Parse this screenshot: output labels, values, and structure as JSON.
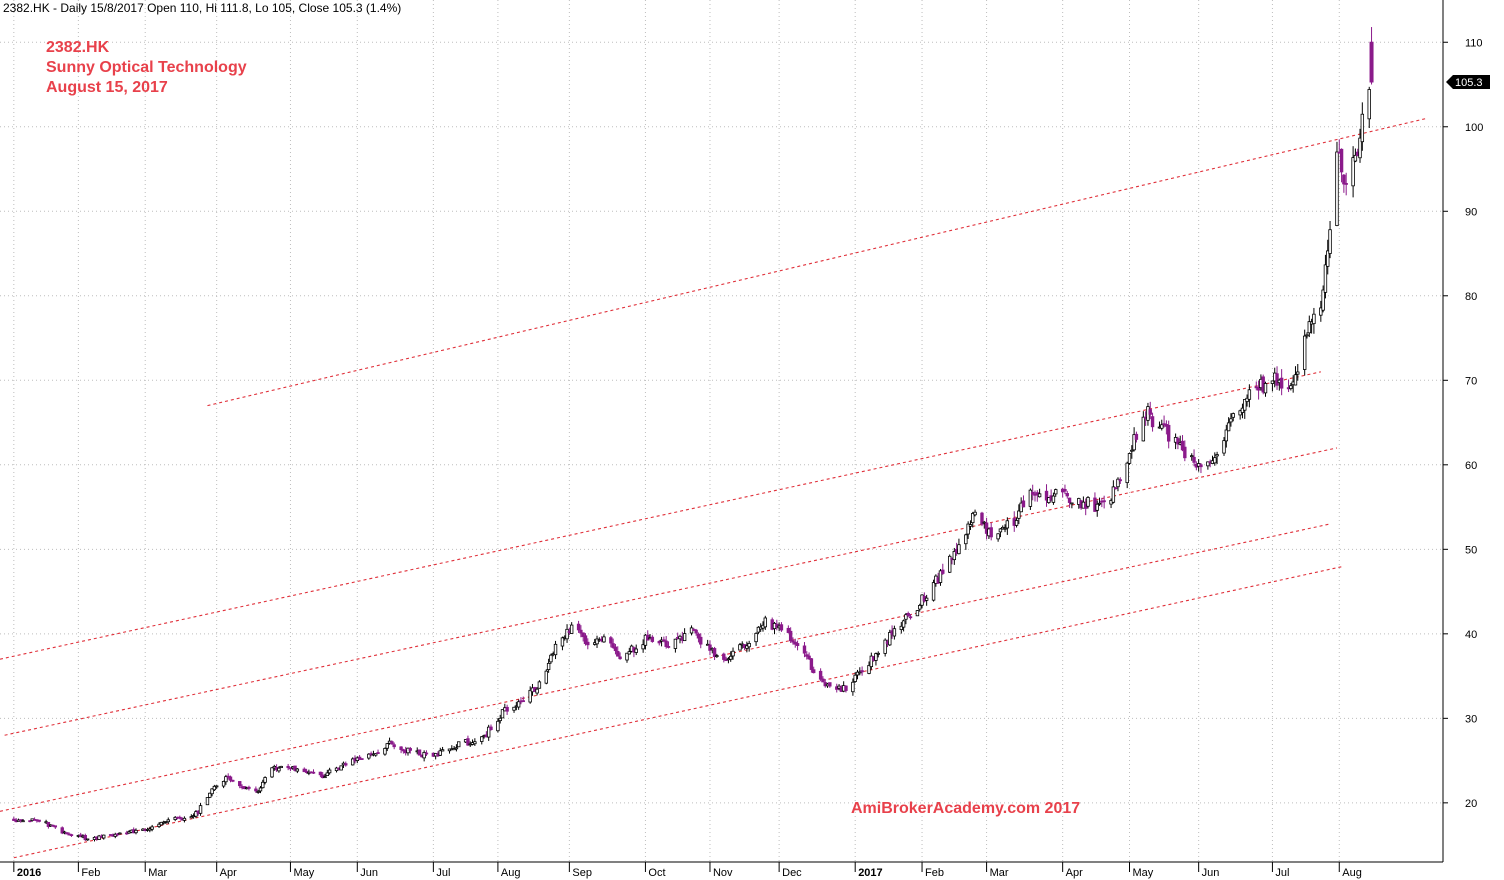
{
  "header": {
    "info": "2382.HK - Daily 15/8/2017 Open 110, Hi 111.8, Lo 105, Close 105.3 (1.4%)"
  },
  "annotation": {
    "lines": [
      "2382.HK",
      "Sunny Optical Technology",
      "August 15, 2017"
    ],
    "color": "#e8414b"
  },
  "watermark": {
    "text": "AmiBrokerAcademy.com  2017",
    "color": "#e8414b"
  },
  "last_price_label": "105.3",
  "colors": {
    "up": "#000000",
    "down": "#8b1a8b",
    "channel": "#e0303a"
  },
  "chart_data": {
    "type": "candlestick",
    "title": "",
    "xlabel": "",
    "ylabel": "",
    "ylim": [
      13,
      115
    ],
    "xlim": [
      "2015-12-29",
      "2017-09-15"
    ],
    "yticks": [
      20,
      30,
      40,
      50,
      60,
      70,
      80,
      90,
      100,
      110
    ],
    "xticks": [
      {
        "date": "2016-01-04",
        "label": "2016",
        "year": true
      },
      {
        "date": "2016-02-01",
        "label": "Feb"
      },
      {
        "date": "2016-03-01",
        "label": "Mar"
      },
      {
        "date": "2016-04-01",
        "label": "Apr"
      },
      {
        "date": "2016-05-03",
        "label": "May"
      },
      {
        "date": "2016-06-01",
        "label": "Jun"
      },
      {
        "date": "2016-07-04",
        "label": "Jul"
      },
      {
        "date": "2016-08-01",
        "label": "Aug"
      },
      {
        "date": "2016-09-01",
        "label": "Sep"
      },
      {
        "date": "2016-10-04",
        "label": "Oct"
      },
      {
        "date": "2016-11-01",
        "label": "Nov"
      },
      {
        "date": "2016-12-01",
        "label": "Dec"
      },
      {
        "date": "2017-01-03",
        "label": "2017",
        "year": true
      },
      {
        "date": "2017-02-01",
        "label": "Feb"
      },
      {
        "date": "2017-03-01",
        "label": "Mar"
      },
      {
        "date": "2017-04-03",
        "label": "Apr"
      },
      {
        "date": "2017-05-02",
        "label": "May"
      },
      {
        "date": "2017-06-01",
        "label": "Jun"
      },
      {
        "date": "2017-07-03",
        "label": "Jul"
      },
      {
        "date": "2017-08-01",
        "label": "Aug"
      }
    ],
    "trend_lines": [
      {
        "x": [
          "2016-03-28",
          "2017-09-08"
        ],
        "y": [
          67,
          101
        ]
      },
      {
        "x": [
          "2015-12-29",
          "2017-07-24"
        ],
        "y": [
          37,
          71
        ]
      },
      {
        "x": [
          "2015-12-31",
          "2017-07-31"
        ],
        "y": [
          28,
          62
        ]
      },
      {
        "x": [
          "2015-12-29",
          "2017-07-28"
        ],
        "y": [
          19,
          53
        ]
      },
      {
        "x": [
          "2016-01-04",
          "2017-08-03"
        ],
        "y": [
          13.5,
          48
        ]
      }
    ],
    "close_path": [
      [
        "2016-01-04",
        18
      ],
      [
        "2016-01-15",
        18
      ],
      [
        "2016-01-25",
        16.5
      ],
      [
        "2016-02-05",
        15.8
      ],
      [
        "2016-02-19",
        16.3
      ],
      [
        "2016-03-01",
        16.8
      ],
      [
        "2016-03-10",
        18
      ],
      [
        "2016-03-18",
        18.2
      ],
      [
        "2016-03-24",
        19
      ],
      [
        "2016-03-30",
        21.5
      ],
      [
        "2016-04-05",
        23
      ],
      [
        "2016-04-12",
        22
      ],
      [
        "2016-04-19",
        21.5
      ],
      [
        "2016-04-25",
        24
      ],
      [
        "2016-05-05",
        24
      ],
      [
        "2016-05-16",
        23
      ],
      [
        "2016-05-26",
        24.5
      ],
      [
        "2016-06-06",
        25.5
      ],
      [
        "2016-06-15",
        27
      ],
      [
        "2016-06-24",
        26
      ],
      [
        "2016-07-04",
        25.5
      ],
      [
        "2016-07-15",
        27
      ],
      [
        "2016-07-25",
        27.5
      ],
      [
        "2016-08-04",
        31
      ],
      [
        "2016-08-12",
        32
      ],
      [
        "2016-08-19",
        34
      ],
      [
        "2016-08-25",
        38
      ],
      [
        "2016-09-02",
        41
      ],
      [
        "2016-09-09",
        38.5
      ],
      [
        "2016-09-16",
        39.5
      ],
      [
        "2016-09-23",
        37
      ],
      [
        "2016-10-05",
        39.5
      ],
      [
        "2016-10-14",
        38.5
      ],
      [
        "2016-10-24",
        40.5
      ],
      [
        "2016-11-01",
        38
      ],
      [
        "2016-11-09",
        37
      ],
      [
        "2016-11-17",
        39
      ],
      [
        "2016-11-25",
        41.5
      ],
      [
        "2016-12-05",
        40
      ],
      [
        "2016-12-13",
        37
      ],
      [
        "2016-12-21",
        34
      ],
      [
        "2016-12-29",
        33.5
      ],
      [
        "2017-01-06",
        35.5
      ],
      [
        "2017-01-13",
        38
      ],
      [
        "2017-01-24",
        41.5
      ],
      [
        "2017-02-01",
        44
      ],
      [
        "2017-02-09",
        47
      ],
      [
        "2017-02-17",
        50
      ],
      [
        "2017-02-23",
        54
      ],
      [
        "2017-03-03",
        52
      ],
      [
        "2017-03-13",
        53
      ],
      [
        "2017-03-20",
        57
      ],
      [
        "2017-03-29",
        56.5
      ],
      [
        "2017-04-07",
        56
      ],
      [
        "2017-04-18",
        55
      ],
      [
        "2017-04-26",
        57
      ],
      [
        "2017-05-04",
        63
      ],
      [
        "2017-05-10",
        66
      ],
      [
        "2017-05-17",
        64
      ],
      [
        "2017-05-25",
        62
      ],
      [
        "2017-06-02",
        59.5
      ],
      [
        "2017-06-09",
        62
      ],
      [
        "2017-06-16",
        66
      ],
      [
        "2017-06-23",
        68
      ],
      [
        "2017-07-03",
        70.5
      ],
      [
        "2017-07-11",
        69.5
      ],
      [
        "2017-07-19",
        76
      ],
      [
        "2017-07-24",
        78
      ],
      [
        "2017-07-27",
        85
      ],
      [
        "2017-07-31",
        98
      ],
      [
        "2017-08-03",
        94
      ],
      [
        "2017-08-07",
        95
      ],
      [
        "2017-08-10",
        98
      ],
      [
        "2017-08-11",
        102
      ],
      [
        "2017-08-14",
        104
      ],
      [
        "2017-08-15",
        105.3
      ]
    ],
    "last_candle": {
      "date": "2017-08-15",
      "open": 110,
      "high": 111.8,
      "low": 105,
      "close": 105.3
    }
  }
}
